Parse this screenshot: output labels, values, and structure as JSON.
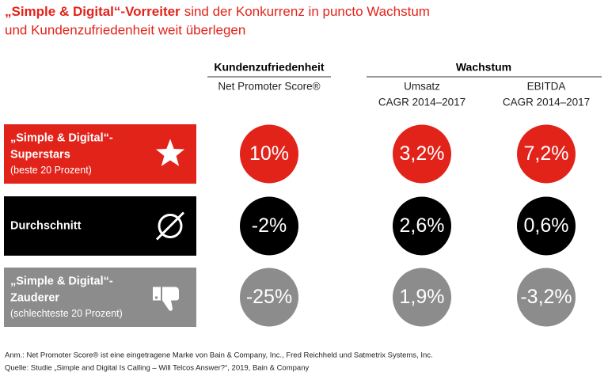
{
  "header": {
    "title_lines": [
      "„Simple & Digital“-Vorreiter",
      "sind der Konkurrenz in puncto Wachstum",
      "und Kundenzufriedenheit weit überlegen"
    ]
  },
  "columns": {
    "groups": [
      "Kundenzufriedenheit",
      "Wachstum"
    ],
    "metrics": [
      [
        "Net Promoter Score®"
      ],
      [
        "Umsatz",
        "CAGR 2014–2017"
      ],
      [
        "EBITDA",
        "CAGR 2014–2017"
      ]
    ]
  },
  "rows": [
    {
      "title_lines": [
        "„Simple & Digital“-",
        "Superstars"
      ],
      "subtitle": "(beste 20 Prozent)",
      "values": [
        "10%",
        "3,2%",
        "7,2%"
      ]
    },
    {
      "title_lines": [
        "Durchschnitt"
      ],
      "values": [
        "-2%",
        "2,6%",
        "0,6%"
      ]
    },
    {
      "title_lines": [
        "„Simple & Digital“-",
        "Zauderer"
      ],
      "subtitle": "(schlechteste 20 Prozent)",
      "values": [
        "-25%",
        "1,9%",
        "-3,2%"
      ]
    }
  ],
  "footnotes": [
    "Anm.: Net Promoter Score® ist eine eingetragene Marke von Bain & Company, Inc., Fred Reichheld und Satmetrix Systems, Inc.",
    "Quelle: Studie „Simple and Digital Is Calling – Will Telcos Answer?“, 2019, Bain & Company"
  ]
}
